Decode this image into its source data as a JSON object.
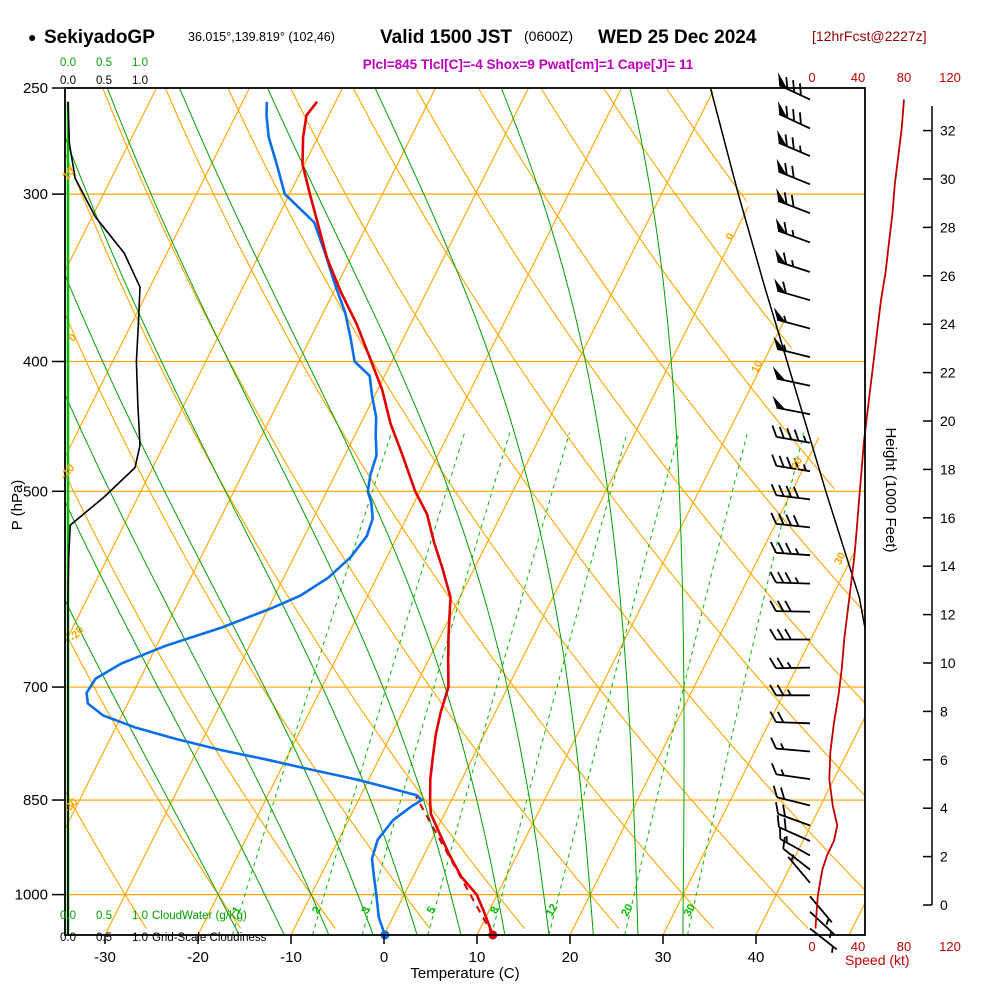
{
  "header": {
    "bullet": "●",
    "station": "SekiyadoGP",
    "coordinates": "36.015°,139.819° (102,46)",
    "valid_time": "Valid 1500 JST",
    "valid_zulu": "(0600Z)",
    "valid_date": "WED 25 Dec 2024",
    "forecast_tag": "[12hrFcst@2227z]",
    "parameters": "Plcl=845 Tlcl[C]=-4 Shox=9 Pwat[cm]=1 Cape[J]= 11"
  },
  "axes": {
    "pressure": {
      "title": "P (hPa)",
      "ticks": [
        250,
        300,
        400,
        500,
        700,
        850,
        1000
      ]
    },
    "temperature": {
      "title": "Temperature (C)",
      "ticks": [
        -30,
        -20,
        -10,
        0,
        10,
        20,
        30,
        40
      ]
    },
    "height": {
      "title": "Height (1000 Feet)",
      "ticks": [
        0,
        2,
        4,
        6,
        8,
        10,
        12,
        14,
        16,
        18,
        20,
        22,
        24,
        26,
        28,
        30,
        32
      ]
    },
    "speed": {
      "title": "Speed (kt)",
      "ticks": [
        0,
        40,
        80,
        120
      ]
    },
    "cloud_scale": {
      "ticks": [
        "0.0",
        "0.5",
        "1.0"
      ],
      "cloudwater_label": "CloudWater (g/Kg)",
      "cloudiness_label": "Grid-Scale Cloudiness"
    }
  },
  "grid_labels": {
    "isotherms_on_diagonal": [
      0,
      10,
      20,
      30
    ],
    "dry_adiabats_left": [
      10,
      0,
      -10,
      -20,
      -30
    ],
    "mixing_ratio_g_kg": [
      1,
      2,
      3,
      5,
      8,
      12,
      20,
      30
    ]
  },
  "colors": {
    "grid_orange": "#FFA500",
    "moist_green": "#00A000",
    "mixing_green": "#00BB00",
    "cloudwater_green": "#00BB00",
    "temperature_red": "#E00000",
    "dewpoint_blue": "#0A6FE8",
    "speed_darkred": "#C00000",
    "parcel_red": "#D00000",
    "magenta": "#C000C0",
    "forecast_maroon": "#990000",
    "black": "#000000"
  },
  "chart_data": {
    "type": "line",
    "variant": "skew-t log-p thermodynamic sounding",
    "pressure_range_hpa": [
      250,
      1072
    ],
    "temperature_profile_p_c": [
      [
        1072,
        11.7
      ],
      [
        1030,
        9.5
      ],
      [
        1000,
        7.8
      ],
      [
        970,
        5.2
      ],
      [
        935,
        2.8
      ],
      [
        900,
        0.5
      ],
      [
        870,
        -1.5
      ],
      [
        850,
        -2.3
      ],
      [
        820,
        -3.4
      ],
      [
        790,
        -4.3
      ],
      [
        760,
        -5.2
      ],
      [
        730,
        -5.9
      ],
      [
        700,
        -6.4
      ],
      [
        670,
        -7.8
      ],
      [
        640,
        -9.2
      ],
      [
        600,
        -11.0
      ],
      [
        570,
        -13.5
      ],
      [
        545,
        -15.8
      ],
      [
        520,
        -18.0
      ],
      [
        500,
        -20.5
      ],
      [
        470,
        -23.8
      ],
      [
        445,
        -26.8
      ],
      [
        420,
        -29.5
      ],
      [
        400,
        -32.2
      ],
      [
        375,
        -35.8
      ],
      [
        355,
        -39.2
      ],
      [
        335,
        -42.5
      ],
      [
        318,
        -45.0
      ],
      [
        300,
        -47.8
      ],
      [
        285,
        -50.2
      ],
      [
        272,
        -51.6
      ],
      [
        262,
        -52.4
      ],
      [
        256,
        -52.0
      ]
    ],
    "dewpoint_profile_p_c": [
      [
        1072,
        0.1
      ],
      [
        1040,
        -1.5
      ],
      [
        1000,
        -3.0
      ],
      [
        970,
        -4.2
      ],
      [
        940,
        -5.4
      ],
      [
        910,
        -5.8
      ],
      [
        880,
        -5.2
      ],
      [
        860,
        -4.0
      ],
      [
        850,
        -3.2
      ],
      [
        843,
        -4.0
      ],
      [
        832,
        -7.5
      ],
      [
        820,
        -11.5
      ],
      [
        806,
        -17.0
      ],
      [
        793,
        -22.0
      ],
      [
        780,
        -27.5
      ],
      [
        765,
        -33.0
      ],
      [
        750,
        -38.0
      ],
      [
        735,
        -42.0
      ],
      [
        720,
        -44.3
      ],
      [
        707,
        -45.0
      ],
      [
        690,
        -44.8
      ],
      [
        672,
        -42.8
      ],
      [
        652,
        -39.0
      ],
      [
        632,
        -34.0
      ],
      [
        612,
        -29.8
      ],
      [
        598,
        -27.2
      ],
      [
        580,
        -25.2
      ],
      [
        560,
        -23.9
      ],
      [
        540,
        -23.3
      ],
      [
        524,
        -23.6
      ],
      [
        510,
        -24.6
      ],
      [
        500,
        -25.6
      ],
      [
        486,
        -26.2
      ],
      [
        470,
        -26.6
      ],
      [
        455,
        -27.7
      ],
      [
        440,
        -28.7
      ],
      [
        424,
        -30.3
      ],
      [
        410,
        -31.6
      ],
      [
        400,
        -34.0
      ],
      [
        385,
        -35.6
      ],
      [
        368,
        -37.6
      ],
      [
        350,
        -40.3
      ],
      [
        332,
        -43.0
      ],
      [
        315,
        -45.8
      ],
      [
        300,
        -50.5
      ],
      [
        286,
        -52.8
      ],
      [
        272,
        -55.3
      ],
      [
        262,
        -56.7
      ],
      [
        256,
        -57.4
      ]
    ],
    "parcel": {
      "plcl_hpa": 845,
      "tlcl_c": -4,
      "shox": 9,
      "pwat_cm": 1,
      "cape_j": 11,
      "path_p_c": [
        [
          1072,
          11.7
        ],
        [
          845,
          -4.0
        ]
      ]
    },
    "surface": {
      "temperature_c": 11.7,
      "dewpoint_c": 0.1
    },
    "cloudiness_profile_p_frac": [
      [
        1072,
        0
      ],
      [
        600,
        0
      ],
      [
        560,
        0.01
      ],
      [
        530,
        0.03
      ],
      [
        505,
        0.5
      ],
      [
        480,
        0.93
      ],
      [
        462,
        1.0
      ],
      [
        430,
        0.97
      ],
      [
        400,
        0.95
      ],
      [
        372,
        0.98
      ],
      [
        352,
        1.0
      ],
      [
        332,
        0.78
      ],
      [
        312,
        0.38
      ],
      [
        292,
        0.1
      ],
      [
        275,
        0.02
      ],
      [
        256,
        0
      ]
    ],
    "cloudwater_profile_p_gkg": [
      [
        1072,
        0
      ],
      [
        256,
        0
      ]
    ],
    "wind_profile_p_dir_kt": [
      [
        255,
        295,
        80
      ],
      [
        268,
        295,
        78
      ],
      [
        281,
        293,
        75
      ],
      [
        295,
        292,
        72
      ],
      [
        310,
        291,
        70
      ],
      [
        326,
        290,
        67
      ],
      [
        343,
        288,
        64
      ],
      [
        360,
        286,
        60
      ],
      [
        378,
        285,
        57
      ],
      [
        397,
        284,
        54
      ],
      [
        417,
        282,
        51
      ],
      [
        438,
        281,
        48
      ],
      [
        460,
        280,
        45
      ],
      [
        483,
        279,
        43
      ],
      [
        507,
        277,
        41
      ],
      [
        532,
        276,
        39
      ],
      [
        558,
        274,
        37
      ],
      [
        586,
        272,
        34
      ],
      [
        615,
        271,
        31
      ],
      [
        645,
        270,
        28
      ],
      [
        677,
        269,
        26
      ],
      [
        710,
        270,
        23
      ],
      [
        745,
        272,
        19
      ],
      [
        782,
        275,
        16
      ],
      [
        820,
        278,
        15
      ],
      [
        858,
        284,
        18
      ],
      [
        888,
        290,
        22
      ],
      [
        912,
        294,
        19
      ],
      [
        935,
        299,
        13
      ],
      [
        958,
        308,
        9
      ],
      [
        980,
        320,
        7
      ],
      [
        1003,
        140,
        5
      ],
      [
        1030,
        133,
        4
      ],
      [
        1060,
        128,
        3
      ]
    ],
    "height_profile_p_kft": [
      [
        1013,
        0.3
      ],
      [
        925,
        2.6
      ],
      [
        850,
        4.9
      ],
      [
        700,
        9.9
      ],
      [
        600,
        13.8
      ],
      [
        500,
        18.4
      ],
      [
        400,
        23.7
      ],
      [
        350,
        26.9
      ],
      [
        300,
        30.4
      ],
      [
        250,
        34.2
      ]
    ]
  }
}
